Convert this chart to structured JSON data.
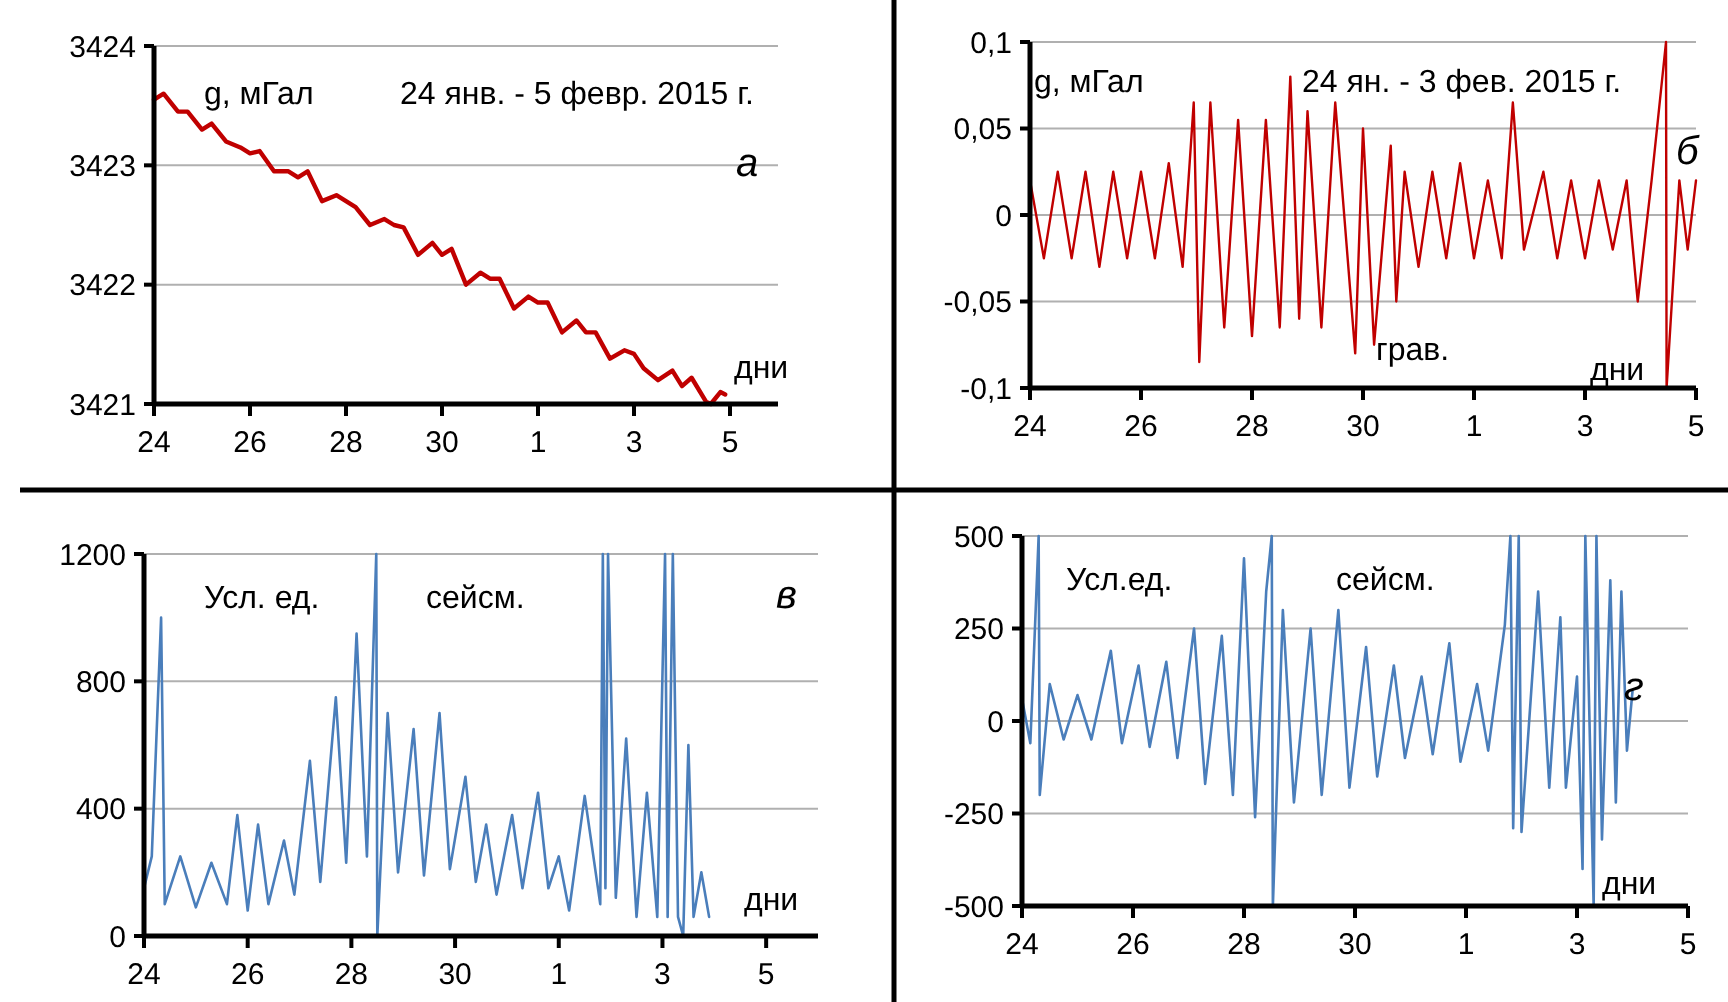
{
  "chart_data": [
    {
      "type": "line",
      "annotations": [
        "g, мГал",
        "24 янв. - 5 февр. 2015 г.",
        "а",
        "дни"
      ],
      "xlim": [
        "2015-01-24",
        "2015-02-06"
      ],
      "xticks": [
        {
          "value": "2015-01-24",
          "label": "24"
        },
        {
          "value": "2015-01-26",
          "label": "26"
        },
        {
          "value": "2015-01-28",
          "label": "28"
        },
        {
          "value": "2015-01-30",
          "label": "30"
        },
        {
          "value": "2015-02-01",
          "label": "1"
        },
        {
          "value": "2015-02-03",
          "label": "3"
        },
        {
          "value": "2015-02-05",
          "label": "5"
        }
      ],
      "ylim": [
        3421,
        3424
      ],
      "yticks": [
        3421,
        3422,
        3423,
        3424
      ],
      "grid": "y",
      "x": [
        "2015-01-24",
        "2015-01-24T04:48",
        "2015-01-24T12:00",
        "2015-01-24T16:48",
        "2015-01-25",
        "2015-01-25T04:48",
        "2015-01-25T12:00",
        "2015-01-25T19:12",
        "2015-01-26",
        "2015-01-26T04:48",
        "2015-01-26T12:00",
        "2015-01-26T19:12",
        "2015-01-27",
        "2015-01-27T04:48",
        "2015-01-27T12:00",
        "2015-01-27T19:12",
        "2015-01-28",
        "2015-01-28T04:48",
        "2015-01-28T12:00",
        "2015-01-28T19:12",
        "2015-01-29",
        "2015-01-29T04:48",
        "2015-01-29T12:00",
        "2015-01-29T19:12",
        "2015-01-30",
        "2015-01-30T04:48",
        "2015-01-30T12:00",
        "2015-01-30T19:12",
        "2015-01-31",
        "2015-01-31T04:48",
        "2015-01-31T12:00",
        "2015-01-31T19:12",
        "2015-02-01",
        "2015-02-01T04:48",
        "2015-02-01T12:00",
        "2015-02-01T19:12",
        "2015-02-02",
        "2015-02-02T04:48",
        "2015-02-02T12:00",
        "2015-02-02T19:12",
        "2015-02-03",
        "2015-02-03T04:48",
        "2015-02-03T12:00",
        "2015-02-03T19:12",
        "2015-02-04",
        "2015-02-04T04:48",
        "2015-02-04T12:00",
        "2015-02-04T14:24",
        "2015-02-04T19:12",
        "2015-02-04T21:36"
      ],
      "series": [
        {
          "color": "#c00000",
          "values": [
            3423.55,
            3423.6,
            3423.45,
            3423.45,
            3423.3,
            3423.35,
            3423.2,
            3423.15,
            3423.1,
            3423.12,
            3422.95,
            3422.95,
            3422.9,
            3422.95,
            3422.7,
            3422.75,
            3422.7,
            3422.65,
            3422.5,
            3422.55,
            3422.5,
            3422.48,
            3422.25,
            3422.35,
            3422.25,
            3422.3,
            3422,
            3422.1,
            3422.05,
            3422.05,
            3421.8,
            3421.9,
            3421.85,
            3421.85,
            3421.6,
            3421.7,
            3421.6,
            3421.6,
            3421.38,
            3421.45,
            3421.42,
            3421.3,
            3421.2,
            3421.28,
            3421.15,
            3421.22,
            3421.02,
            3421,
            3421.1,
            3421.08
          ]
        }
      ]
    },
    {
      "type": "line",
      "annotations": [
        "g, мГал",
        "24 ян. - 3 фев. 2015 г.",
        "б",
        "грав.",
        "дни"
      ],
      "xlim": [
        "2015-01-24",
        "2015-02-05"
      ],
      "xticks": [
        {
          "value": "2015-01-24",
          "label": "24"
        },
        {
          "value": "2015-01-26",
          "label": "26"
        },
        {
          "value": "2015-01-28",
          "label": "28"
        },
        {
          "value": "2015-01-30",
          "label": "30"
        },
        {
          "value": "2015-02-01",
          "label": "1"
        },
        {
          "value": "2015-02-03",
          "label": "3"
        },
        {
          "value": "2015-02-05",
          "label": "5"
        }
      ],
      "ylim": [
        -0.1,
        0.1
      ],
      "yticks": [
        {
          "value": -0.1,
          "label": "-0,1"
        },
        {
          "value": -0.05,
          "label": "-0,05"
        },
        0,
        {
          "value": 0.05,
          "label": "0,05"
        },
        {
          "value": 0.1,
          "label": "0,1"
        }
      ],
      "grid": "y",
      "x": [
        "2015-01-24",
        "2015-01-24T06:00",
        "2015-01-24T12:00",
        "2015-01-24T18:00",
        "2015-01-25",
        "2015-01-25T06:00",
        "2015-01-25T12:00",
        "2015-01-25T18:00",
        "2015-01-26",
        "2015-01-26T06:00",
        "2015-01-26T12:00",
        "2015-01-26T18:00",
        "2015-01-26T22:48",
        "2015-01-27T01:12",
        "2015-01-27T06:00",
        "2015-01-27T12:00",
        "2015-01-27T18:00",
        "2015-01-28",
        "2015-01-28T06:00",
        "2015-01-28T12:00",
        "2015-01-28T16:34",
        "2015-01-28T20:24",
        "2015-01-29",
        "2015-01-29T06:00",
        "2015-01-29T12:00",
        "2015-01-29T20:38",
        "2015-01-30",
        "2015-01-30T04:48",
        "2015-01-30T12:00",
        "2015-01-30T14:24",
        "2015-01-30T18:00",
        "2015-01-31",
        "2015-01-31T06:00",
        "2015-01-31T12:00",
        "2015-01-31T18:00",
        "2015-02-01",
        "2015-02-01T06:00",
        "2015-02-01T12:00",
        "2015-02-01T16:48",
        "2015-02-01T21:36",
        "2015-02-02T06:00",
        "2015-02-02T12:00",
        "2015-02-02T18:00",
        "2015-02-03",
        "2015-02-03T06:00",
        "2015-02-03T12:00",
        "2015-02-03T18:00",
        "2015-02-03T22:48",
        "2015-02-04T04:48",
        "2015-02-04T11:02",
        "2015-02-04T11:17",
        "2015-02-04T16:48",
        "2015-02-04T20:24",
        "2015-02-05"
      ],
      "series": [
        {
          "color": "#c00000",
          "values": [
            0.02,
            -0.025,
            0.025,
            -0.025,
            0.025,
            -0.03,
            0.025,
            -0.025,
            0.025,
            -0.025,
            0.03,
            -0.03,
            0.065,
            -0.085,
            0.065,
            -0.065,
            0.055,
            -0.07,
            0.055,
            -0.065,
            0.08,
            -0.06,
            0.06,
            -0.065,
            0.065,
            -0.08,
            0.05,
            -0.075,
            0.04,
            -0.05,
            0.025,
            -0.03,
            0.025,
            -0.025,
            0.03,
            -0.025,
            0.02,
            -0.025,
            0.065,
            -0.02,
            0.025,
            -0.025,
            0.02,
            -0.025,
            0.02,
            -0.02,
            0.02,
            -0.05,
            0.02,
            0.1,
            -0.1,
            0.02,
            -0.02,
            0.02
          ]
        }
      ]
    },
    {
      "type": "line",
      "annotations": [
        "Усл. ед.",
        "сейсм.",
        "в",
        "дни"
      ],
      "xlim": [
        "2015-01-24",
        "2015-02-06"
      ],
      "xticks": [
        {
          "value": "2015-01-24",
          "label": "24"
        },
        {
          "value": "2015-01-26",
          "label": "26"
        },
        {
          "value": "2015-01-28",
          "label": "28"
        },
        {
          "value": "2015-01-30",
          "label": "30"
        },
        {
          "value": "2015-02-01",
          "label": "1"
        },
        {
          "value": "2015-02-03",
          "label": "3"
        },
        {
          "value": "2015-02-05",
          "label": "5"
        }
      ],
      "ylim": [
        0,
        1200
      ],
      "yticks": [
        0,
        400,
        800,
        1200
      ],
      "grid": "y",
      "x": [
        "2015-01-24",
        "2015-01-24T03:36",
        "2015-01-24T07:55",
        "2015-01-24T09:36",
        "2015-01-24T16:48",
        "2015-01-25",
        "2015-01-25T07:12",
        "2015-01-25T14:24",
        "2015-01-25T19:12",
        "2015-01-26",
        "2015-01-26T04:48",
        "2015-01-26T09:36",
        "2015-01-26T16:48",
        "2015-01-26T21:36",
        "2015-01-27T04:48",
        "2015-01-27T09:36",
        "2015-01-27T16:48",
        "2015-01-27T21:36",
        "2015-01-28T02:24",
        "2015-01-28T07:12",
        "2015-01-28T11:31",
        "2015-01-28T12:00",
        "2015-01-28T16:48",
        "2015-01-28T21:36",
        "2015-01-29T04:48",
        "2015-01-29T09:36",
        "2015-01-29T16:48",
        "2015-01-29T21:36",
        "2015-01-30T04:48",
        "2015-01-30T09:36",
        "2015-01-30T14:24",
        "2015-01-30T19:12",
        "2015-01-31T02:24",
        "2015-01-31T07:12",
        "2015-01-31T14:24",
        "2015-01-31T19:12",
        "2015-02-01",
        "2015-02-01T04:48",
        "2015-02-01T12:00",
        "2015-02-01T19:12",
        "2015-02-01T20:24",
        "2015-02-01T21:36",
        "2015-02-01T22:48",
        "2015-02-02T02:24",
        "2015-02-02T07:12",
        "2015-02-02T12:00",
        "2015-02-02T16:48",
        "2015-02-02T21:36",
        "2015-02-03T01:12",
        "2015-02-03T02:24",
        "2015-02-03T04:48",
        "2015-02-03T07:12",
        "2015-02-03T09:36",
        "2015-02-03T12:00",
        "2015-02-03T14:24",
        "2015-02-03T18:00",
        "2015-02-03T21:36"
      ],
      "series": [
        {
          "color": "#4a7ebb",
          "values": [
            150,
            250,
            1000,
            100,
            250,
            90,
            230,
            100,
            380,
            80,
            350,
            100,
            300,
            130,
            550,
            170,
            750,
            230,
            950,
            250,
            1200,
            0,
            700,
            200,
            650,
            190,
            700,
            210,
            500,
            170,
            350,
            130,
            380,
            150,
            450,
            150,
            250,
            80,
            440,
            100,
            1200,
            150,
            1200,
            120,
            620,
            60,
            450,
            60,
            1200,
            60,
            1200,
            60,
            0,
            600,
            60,
            200,
            60
          ]
        }
      ]
    },
    {
      "type": "line",
      "annotations": [
        "Усл.ед.",
        "сейсм.",
        "г",
        "дни"
      ],
      "xlim": [
        "2015-01-24",
        "2015-02-05"
      ],
      "xticks": [
        {
          "value": "2015-01-24",
          "label": "24"
        },
        {
          "value": "2015-01-26",
          "label": "26"
        },
        {
          "value": "2015-01-28",
          "label": "28"
        },
        {
          "value": "2015-01-30",
          "label": "30"
        },
        {
          "value": "2015-02-01",
          "label": "1"
        },
        {
          "value": "2015-02-03",
          "label": "3"
        },
        {
          "value": "2015-02-05",
          "label": "5"
        }
      ],
      "ylim": [
        -500,
        500
      ],
      "yticks": [
        -500,
        -250,
        0,
        250,
        500
      ],
      "grid": "y",
      "x": [
        "2015-01-24",
        "2015-01-24T03:36",
        "2015-01-24T07:12",
        "2015-01-24T07:41",
        "2015-01-24T12:00",
        "2015-01-24T18:00",
        "2015-01-25",
        "2015-01-25T06:00",
        "2015-01-25T14:24",
        "2015-01-25T19:12",
        "2015-01-26T02:24",
        "2015-01-26T07:12",
        "2015-01-26T14:24",
        "2015-01-26T19:12",
        "2015-01-27T02:24",
        "2015-01-27T07:12",
        "2015-01-27T14:24",
        "2015-01-27T19:12",
        "2015-01-28",
        "2015-01-28T04:48",
        "2015-01-28T09:36",
        "2015-01-28T12:00",
        "2015-01-28T12:29",
        "2015-01-28T16:48",
        "2015-01-28T21:36",
        "2015-01-29T04:48",
        "2015-01-29T09:36",
        "2015-01-29T16:48",
        "2015-01-29T21:36",
        "2015-01-30T04:48",
        "2015-01-30T09:36",
        "2015-01-30T16:48",
        "2015-01-30T21:36",
        "2015-01-31T04:48",
        "2015-01-31T09:36",
        "2015-01-31T16:48",
        "2015-01-31T21:36",
        "2015-02-01T04:48",
        "2015-02-01T09:36",
        "2015-02-01T16:48",
        "2015-02-01T19:12",
        "2015-02-01T20:24",
        "2015-02-01T22:48",
        "2015-02-02",
        "2015-02-02T07:12",
        "2015-02-02T12:00",
        "2015-02-02T16:48",
        "2015-02-02T19:12",
        "2015-02-03",
        "2015-02-03T02:24",
        "2015-02-03T03:36",
        "2015-02-03T07:12",
        "2015-02-03T08:24",
        "2015-02-03T10:48",
        "2015-02-03T14:24",
        "2015-02-03T16:48",
        "2015-02-03T19:12",
        "2015-02-03T21:36",
        "2015-02-04"
      ],
      "series": [
        {
          "color": "#4a7ebb",
          "values": [
            60,
            -60,
            500,
            -200,
            100,
            -50,
            70,
            -50,
            190,
            -60,
            150,
            -70,
            160,
            -100,
            250,
            -170,
            230,
            -200,
            440,
            -260,
            350,
            500,
            -500,
            300,
            -220,
            250,
            -200,
            300,
            -180,
            200,
            -150,
            150,
            -100,
            120,
            -90,
            210,
            -110,
            100,
            -80,
            260,
            500,
            -290,
            500,
            -300,
            350,
            -180,
            280,
            -180,
            120,
            -400,
            500,
            -500,
            500,
            -320,
            380,
            -220,
            350,
            -80,
            80
          ]
        }
      ]
    }
  ]
}
